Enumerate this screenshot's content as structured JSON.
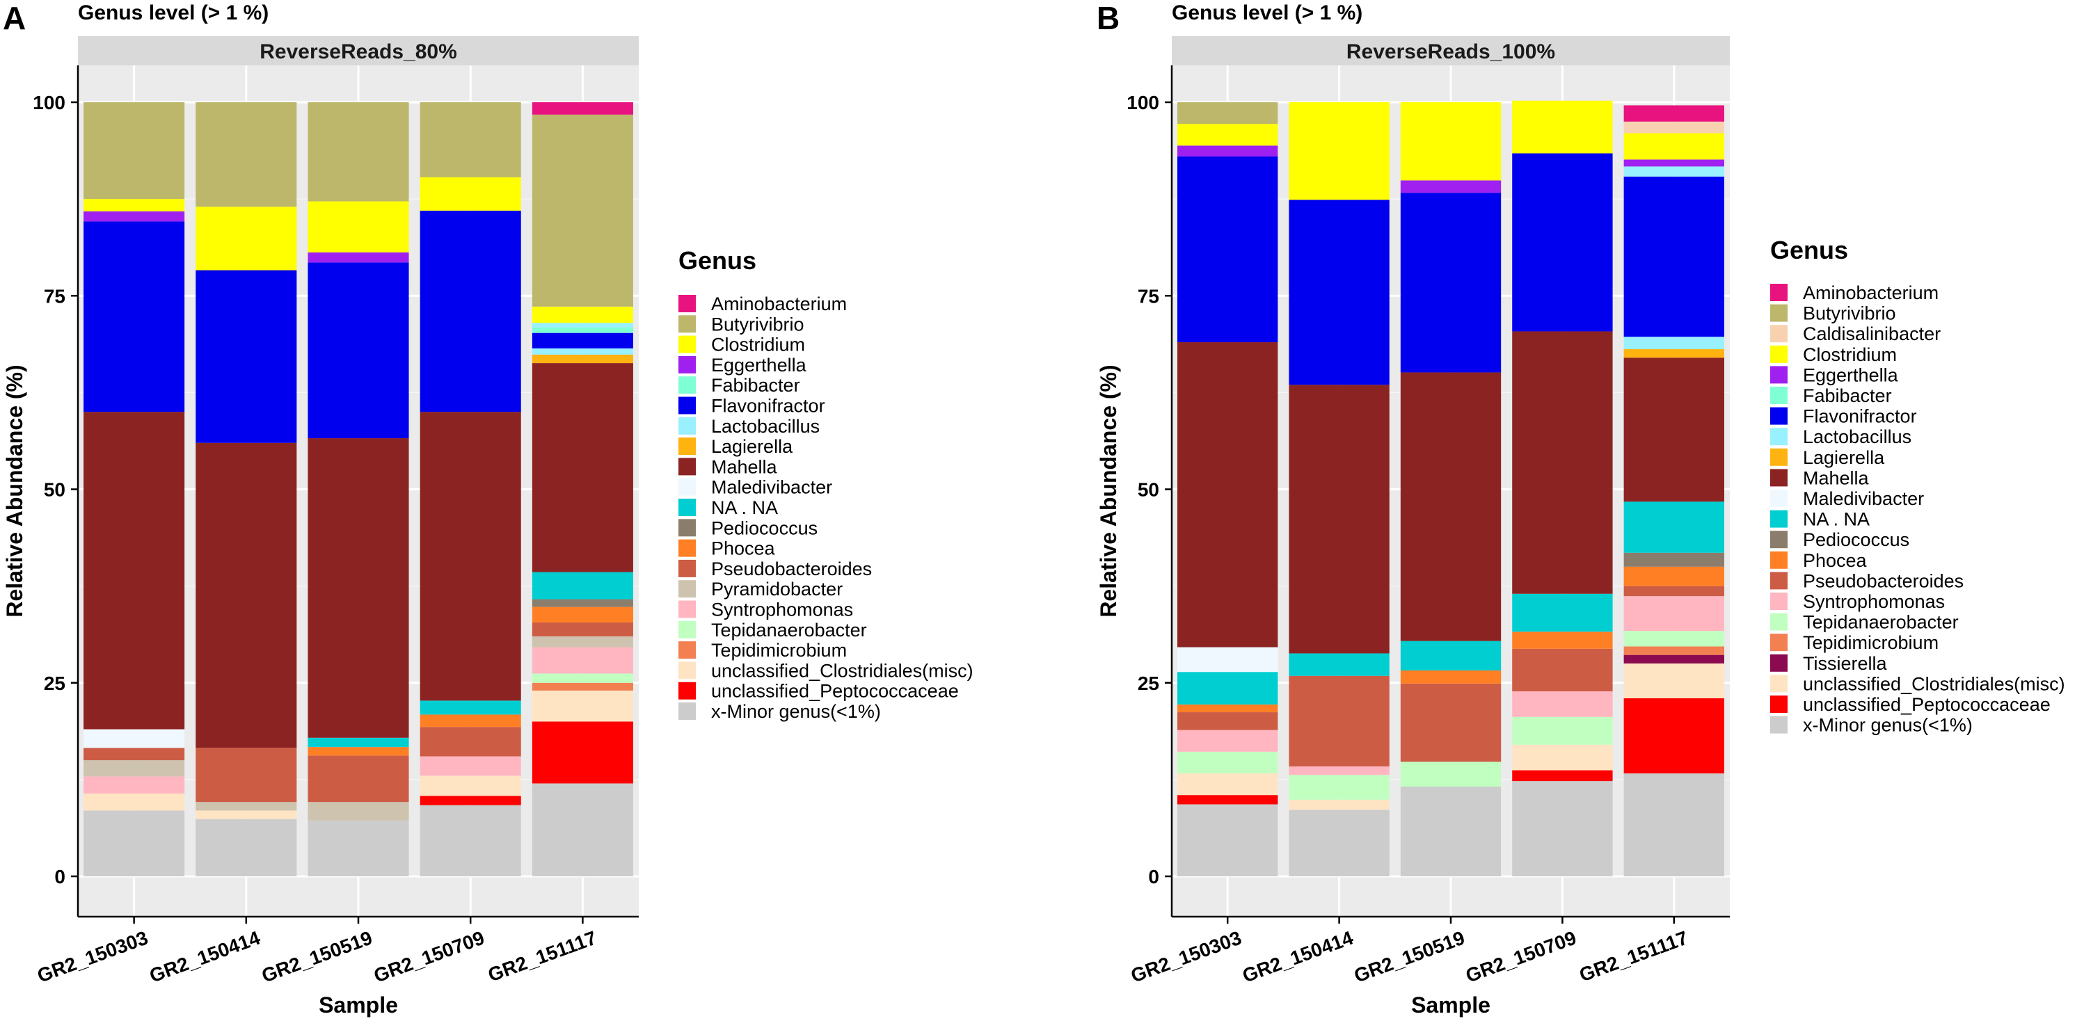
{
  "colors": {
    "Aminobacterium": "#e8137f",
    "Butyrivibrio": "#bdb76b",
    "Caldisalinibacter": "#f8d2b0",
    "Clostridium": "#ffff00",
    "Eggerthella": "#a020f0",
    "Fabibacter": "#7fffd4",
    "Flavonifractor": "#0000ee",
    "Lactobacillus": "#99f0ff",
    "Lagierella": "#ffb310",
    "Mahella": "#8b2323",
    "Maledivibacter": "#f0f8ff",
    "NA . NA": "#00ced1",
    "Pediococcus": "#8b7d6b",
    "Phocea": "#ff7f24",
    "Pseudobacteroides": "#cd5c45",
    "Pyramidobacter": "#cdc3af",
    "Syntrophomonas": "#ffb6c1",
    "Tepidanaerobacter": "#c1ffc1",
    "Tepidimicrobium": "#f28050",
    "Tissierella": "#8b0a50",
    "unclassified_Clostridiales(misc)": "#ffe4c4",
    "unclassified_Peptococcaceae": "#ff0000",
    "x-Minor genus(<1%)": "#cccccc"
  },
  "chart_data": [
    {
      "type": "bar",
      "panel_label": "A",
      "title": "Genus level (> 1 %)",
      "strip": "ReverseReads_80%",
      "xlabel": "Sample",
      "ylabel": "Relative Abundance (%)",
      "ylim": [
        0,
        100
      ],
      "yticks": [
        0,
        25,
        50,
        75,
        100
      ],
      "grid": true,
      "legend_title": "Genus",
      "legend": [
        "Aminobacterium",
        "Butyrivibrio",
        "Clostridium",
        "Eggerthella",
        "Fabibacter",
        "Flavonifractor",
        "Lactobacillus",
        "Lagierella",
        "Mahella",
        "Maledivibacter",
        "NA . NA",
        "Pediococcus",
        "Phocea",
        "Pseudobacteroides",
        "Pyramidobacter",
        "Syntrophomonas",
        "Tepidanaerobacter",
        "Tepidimicrobium",
        "unclassified_Clostridiales(misc)",
        "unclassified_Peptococcaceae",
        "x-Minor genus(<1%)"
      ],
      "categories": [
        "GR2_150303",
        "GR2_150414",
        "GR2_150519",
        "GR2_150709",
        "GR2_151117"
      ],
      "bars": [
        {
          "sample": "GR2_150303",
          "segments": [
            {
              "genus": "x-Minor genus(<1%)",
              "value": 8.5
            },
            {
              "genus": "unclassified_Clostridiales(misc)",
              "value": 2.2
            },
            {
              "genus": "Syntrophomonas",
              "value": 2.2
            },
            {
              "genus": "Pyramidobacter",
              "value": 2.1
            },
            {
              "genus": "Pseudobacteroides",
              "value": 1.6
            },
            {
              "genus": "Maledivibacter",
              "value": 2.4
            },
            {
              "genus": "Mahella",
              "value": 41.0
            },
            {
              "genus": "Flavonifractor",
              "value": 24.6
            },
            {
              "genus": "Eggerthella",
              "value": 1.3
            },
            {
              "genus": "Clostridium",
              "value": 1.6
            },
            {
              "genus": "Butyrivibrio",
              "value": 12.5
            }
          ]
        },
        {
          "sample": "GR2_150414",
          "segments": [
            {
              "genus": "x-Minor genus(<1%)",
              "value": 7.4
            },
            {
              "genus": "unclassified_Clostridiales(misc)",
              "value": 1.1
            },
            {
              "genus": "Pyramidobacter",
              "value": 1.1
            },
            {
              "genus": "Pseudobacteroides",
              "value": 7.0
            },
            {
              "genus": "Mahella",
              "value": 39.4
            },
            {
              "genus": "Flavonifractor",
              "value": 22.3
            },
            {
              "genus": "Clostridium",
              "value": 8.2
            },
            {
              "genus": "Butyrivibrio",
              "value": 13.5
            }
          ]
        },
        {
          "sample": "GR2_150519",
          "segments": [
            {
              "genus": "x-Minor genus(<1%)",
              "value": 7.2
            },
            {
              "genus": "Pyramidobacter",
              "value": 2.4
            },
            {
              "genus": "Pseudobacteroides",
              "value": 6.0
            },
            {
              "genus": "Phocea",
              "value": 1.1
            },
            {
              "genus": "NA . NA",
              "value": 1.2
            },
            {
              "genus": "Mahella",
              "value": 38.7
            },
            {
              "genus": "Flavonifractor",
              "value": 22.7
            },
            {
              "genus": "Eggerthella",
              "value": 1.3
            },
            {
              "genus": "Clostridium",
              "value": 6.6
            },
            {
              "genus": "Butyrivibrio",
              "value": 12.8
            }
          ]
        },
        {
          "sample": "GR2_150709",
          "segments": [
            {
              "genus": "x-Minor genus(<1%)",
              "value": 9.2
            },
            {
              "genus": "unclassified_Peptococcaceae",
              "value": 1.2
            },
            {
              "genus": "unclassified_Clostridiales(misc)",
              "value": 2.6
            },
            {
              "genus": "Syntrophomonas",
              "value": 2.5
            },
            {
              "genus": "Pseudobacteroides",
              "value": 3.8
            },
            {
              "genus": "Phocea",
              "value": 1.6
            },
            {
              "genus": "NA . NA",
              "value": 1.8
            },
            {
              "genus": "Mahella",
              "value": 37.3
            },
            {
              "genus": "Flavonifractor",
              "value": 26.0
            },
            {
              "genus": "Clostridium",
              "value": 4.3
            },
            {
              "genus": "Butyrivibrio",
              "value": 9.7
            }
          ]
        },
        {
          "sample": "GR2_151117",
          "segments": [
            {
              "genus": "x-Minor genus(<1%)",
              "value": 12.0
            },
            {
              "genus": "unclassified_Peptococcaceae",
              "value": 8.0
            },
            {
              "genus": "unclassified_Clostridiales(misc)",
              "value": 4.0
            },
            {
              "genus": "Tepidimicrobium",
              "value": 1.0
            },
            {
              "genus": "Tepidanaerobacter",
              "value": 1.2
            },
            {
              "genus": "Syntrophomonas",
              "value": 3.4
            },
            {
              "genus": "Pyramidobacter",
              "value": 1.4
            },
            {
              "genus": "Pseudobacteroides",
              "value": 1.8
            },
            {
              "genus": "Phocea",
              "value": 2.0
            },
            {
              "genus": "Pediococcus",
              "value": 1.0
            },
            {
              "genus": "NA . NA",
              "value": 3.5
            },
            {
              "genus": "Mahella",
              "value": 27.0
            },
            {
              "genus": "Lagierella",
              "value": 1.1
            },
            {
              "genus": "Lactobacillus",
              "value": 0.8
            },
            {
              "genus": "Flavonifractor",
              "value": 2.0
            },
            {
              "genus": "Fabibacter",
              "value": 0.7
            },
            {
              "genus": "Lactobacillus",
              "value": 0.6
            },
            {
              "genus": "Clostridium",
              "value": 2.1
            },
            {
              "genus": "Butyrivibrio",
              "value": 24.8
            },
            {
              "genus": "Aminobacterium",
              "value": 1.6
            }
          ]
        }
      ]
    },
    {
      "type": "bar",
      "panel_label": "B",
      "title": "Genus level (> 1 %)",
      "strip": "ReverseReads_100%",
      "xlabel": "Sample",
      "ylabel": "Relative Abundance (%)",
      "ylim": [
        0,
        100
      ],
      "yticks": [
        0,
        25,
        50,
        75,
        100
      ],
      "grid": true,
      "legend_title": "Genus",
      "legend": [
        "Aminobacterium",
        "Butyrivibrio",
        "Caldisalinibacter",
        "Clostridium",
        "Eggerthella",
        "Fabibacter",
        "Flavonifractor",
        "Lactobacillus",
        "Lagierella",
        "Mahella",
        "Maledivibacter",
        "NA . NA",
        "Pediococcus",
        "Phocea",
        "Pseudobacteroides",
        "Syntrophomonas",
        "Tepidanaerobacter",
        "Tepidimicrobium",
        "Tissierella",
        "unclassified_Clostridiales(misc)",
        "unclassified_Peptococcaceae",
        "x-Minor genus(<1%)"
      ],
      "categories": [
        "GR2_150303",
        "GR2_150414",
        "GR2_150519",
        "GR2_150709",
        "GR2_151117"
      ],
      "bars": [
        {
          "sample": "GR2_150303",
          "segments": [
            {
              "genus": "x-Minor genus(<1%)",
              "value": 9.3
            },
            {
              "genus": "unclassified_Peptococcaceae",
              "value": 1.2
            },
            {
              "genus": "unclassified_Clostridiales(misc)",
              "value": 2.8
            },
            {
              "genus": "Tepidanaerobacter",
              "value": 2.8
            },
            {
              "genus": "Syntrophomonas",
              "value": 2.8
            },
            {
              "genus": "Pseudobacteroides",
              "value": 2.3
            },
            {
              "genus": "Phocea",
              "value": 1.0
            },
            {
              "genus": "NA . NA",
              "value": 4.2
            },
            {
              "genus": "Maledivibacter",
              "value": 3.2
            },
            {
              "genus": "Mahella",
              "value": 39.4
            },
            {
              "genus": "Flavonifractor",
              "value": 24.0
            },
            {
              "genus": "Eggerthella",
              "value": 1.4
            },
            {
              "genus": "Clostridium",
              "value": 2.8
            },
            {
              "genus": "Butyrivibrio",
              "value": 2.8
            }
          ]
        },
        {
          "sample": "GR2_150414",
          "segments": [
            {
              "genus": "x-Minor genus(<1%)",
              "value": 8.6
            },
            {
              "genus": "unclassified_Clostridiales(misc)",
              "value": 1.3
            },
            {
              "genus": "Tepidanaerobacter",
              "value": 3.2
            },
            {
              "genus": "Syntrophomonas",
              "value": 1.1
            },
            {
              "genus": "Pseudobacteroides",
              "value": 11.7
            },
            {
              "genus": "NA . NA",
              "value": 2.9
            },
            {
              "genus": "Mahella",
              "value": 34.7
            },
            {
              "genus": "Flavonifractor",
              "value": 23.9
            },
            {
              "genus": "Clostridium",
              "value": 12.6
            }
          ]
        },
        {
          "sample": "GR2_150519",
          "segments": [
            {
              "genus": "x-Minor genus(<1%)",
              "value": 11.6
            },
            {
              "genus": "Tepidanaerobacter",
              "value": 3.2
            },
            {
              "genus": "Pseudobacteroides",
              "value": 10.1
            },
            {
              "genus": "Phocea",
              "value": 1.7
            },
            {
              "genus": "NA . NA",
              "value": 3.8
            },
            {
              "genus": "Mahella",
              "value": 34.7
            },
            {
              "genus": "Flavonifractor",
              "value": 23.2
            },
            {
              "genus": "Eggerthella",
              "value": 1.6
            },
            {
              "genus": "Clostridium",
              "value": 10.1
            }
          ]
        },
        {
          "sample": "GR2_150709",
          "segments": [
            {
              "genus": "x-Minor genus(<1%)",
              "value": 12.3
            },
            {
              "genus": "unclassified_Peptococcaceae",
              "value": 1.4
            },
            {
              "genus": "unclassified_Clostridiales(misc)",
              "value": 3.3
            },
            {
              "genus": "Tepidanaerobacter",
              "value": 3.6
            },
            {
              "genus": "Syntrophomonas",
              "value": 3.3
            },
            {
              "genus": "Pseudobacteroides",
              "value": 5.5
            },
            {
              "genus": "Phocea",
              "value": 2.2
            },
            {
              "genus": "NA . NA",
              "value": 4.9
            },
            {
              "genus": "Mahella",
              "value": 33.9
            },
            {
              "genus": "Flavonifractor",
              "value": 23.0
            },
            {
              "genus": "Clostridium",
              "value": 6.8
            }
          ]
        },
        {
          "sample": "GR2_151117",
          "segments": [
            {
              "genus": "x-Minor genus(<1%)",
              "value": 13.3
            },
            {
              "genus": "unclassified_Peptococcaceae",
              "value": 9.7
            },
            {
              "genus": "unclassified_Clostridiales(misc)",
              "value": 4.5
            },
            {
              "genus": "Tissierella",
              "value": 1.1
            },
            {
              "genus": "Tepidimicrobium",
              "value": 1.1
            },
            {
              "genus": "Tepidanaerobacter",
              "value": 2.0
            },
            {
              "genus": "Syntrophomonas",
              "value": 4.5
            },
            {
              "genus": "Pseudobacteroides",
              "value": 1.3
            },
            {
              "genus": "Phocea",
              "value": 2.5
            },
            {
              "genus": "Pediococcus",
              "value": 1.8
            },
            {
              "genus": "NA . NA",
              "value": 6.6
            },
            {
              "genus": "Mahella",
              "value": 18.6
            },
            {
              "genus": "Lagierella",
              "value": 1.1
            },
            {
              "genus": "Lactobacillus",
              "value": 1.6
            },
            {
              "genus": "Flavonifractor",
              "value": 20.7
            },
            {
              "genus": "Lactobacillus",
              "value": 1.3
            },
            {
              "genus": "Eggerthella",
              "value": 0.9
            },
            {
              "genus": "Clostridium",
              "value": 3.4
            },
            {
              "genus": "Caldisalinibacter",
              "value": 1.5
            },
            {
              "genus": "Aminobacterium",
              "value": 2.1
            }
          ]
        }
      ]
    }
  ]
}
